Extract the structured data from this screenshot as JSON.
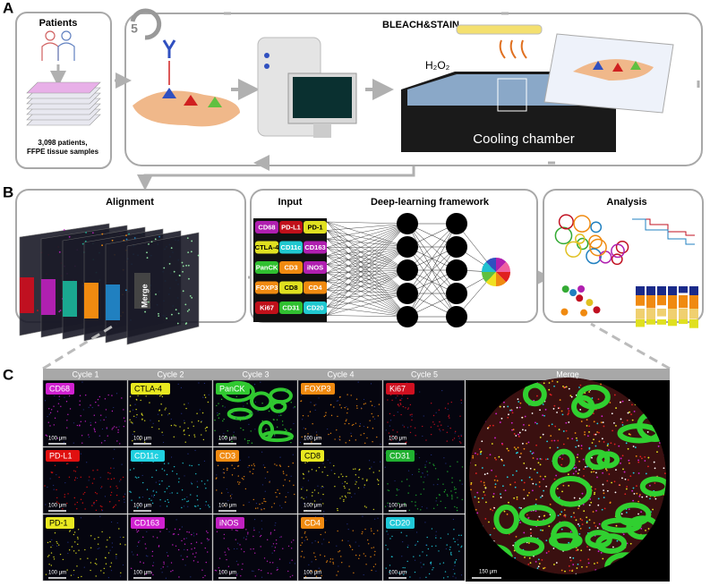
{
  "panel_a": {
    "label": "A",
    "patients_title": "Patients",
    "sample_lines": [
      "3,098 patients,",
      "FFPE tissue samples"
    ],
    "cycles": "5",
    "process_title": "BLEACH&STAIN",
    "reagent": "H₂O₂",
    "chamber": "Cooling chamber"
  },
  "panel_b": {
    "label": "B",
    "alignment_title": "Alignment",
    "merge_label": "Merge",
    "input_title": "Input",
    "framework_title": "Deep-learning framework",
    "analysis_title": "Analysis",
    "markers": [
      [
        {
          "name": "CD68",
          "color": "#b01fb0"
        },
        {
          "name": "PD-L1",
          "color": "#c0101a"
        },
        {
          "name": "PD-1",
          "color": "#e0e020"
        }
      ],
      [
        {
          "name": "CTLA-4",
          "color": "#e0e020"
        },
        {
          "name": "CD11c",
          "color": "#20c8d0"
        },
        {
          "name": "CD163",
          "color": "#b01fb0"
        }
      ],
      [
        {
          "name": "PanCK",
          "color": "#30c030"
        },
        {
          "name": "CD3",
          "color": "#f08a10"
        },
        {
          "name": "iNOS",
          "color": "#b01fb0"
        }
      ],
      [
        {
          "name": "FOXP3",
          "color": "#f08a10"
        },
        {
          "name": "CD8",
          "color": "#e0e020"
        },
        {
          "name": "CD4",
          "color": "#f08a10"
        }
      ],
      [
        {
          "name": "Ki67",
          "color": "#c0101a"
        },
        {
          "name": "CD31",
          "color": "#30c030"
        },
        {
          "name": "CD20",
          "color": "#20c8d0"
        }
      ]
    ]
  },
  "panel_c": {
    "label": "C",
    "columns": [
      "Cycle 1",
      "Cycle 2",
      "Cycle 3",
      "Cycle 4",
      "Cycle 5"
    ],
    "merge_title": "Merge",
    "merge_scale": "150 μm",
    "rows": [
      [
        {
          "marker": "CD68",
          "color": "#d020d0",
          "scale": "100 μm"
        },
        {
          "marker": "CTLA-4",
          "color": "#e8e820",
          "scale": "100 μm"
        },
        {
          "marker": "PanCK",
          "color": "#30c830",
          "scale": "100 μm"
        },
        {
          "marker": "FOXP3",
          "color": "#f08a10",
          "scale": "100 μm"
        },
        {
          "marker": "Ki67",
          "color": "#d01020",
          "scale": "100 μm"
        }
      ],
      [
        {
          "marker": "PD-L1",
          "color": "#e01010",
          "scale": "100 μm"
        },
        {
          "marker": "CD11c",
          "color": "#20d0e0",
          "scale": "100 μm"
        },
        {
          "marker": "CD3",
          "color": "#f08a10",
          "scale": "100 μm"
        },
        {
          "marker": "CD8",
          "color": "#e8e820",
          "scale": "100 μm"
        },
        {
          "marker": "CD31",
          "color": "#20b030",
          "scale": "100 μm"
        }
      ],
      [
        {
          "marker": "PD-1",
          "color": "#e8e820",
          "scale": "100 μm"
        },
        {
          "marker": "CD163",
          "color": "#d020d0",
          "scale": "100 μm"
        },
        {
          "marker": "iNOS",
          "color": "#c020c0",
          "scale": "100 μm"
        },
        {
          "marker": "CD4",
          "color": "#f08a10",
          "scale": "100 μm"
        },
        {
          "marker": "CD20",
          "color": "#20c8d8",
          "scale": "100 μm"
        }
      ]
    ]
  }
}
